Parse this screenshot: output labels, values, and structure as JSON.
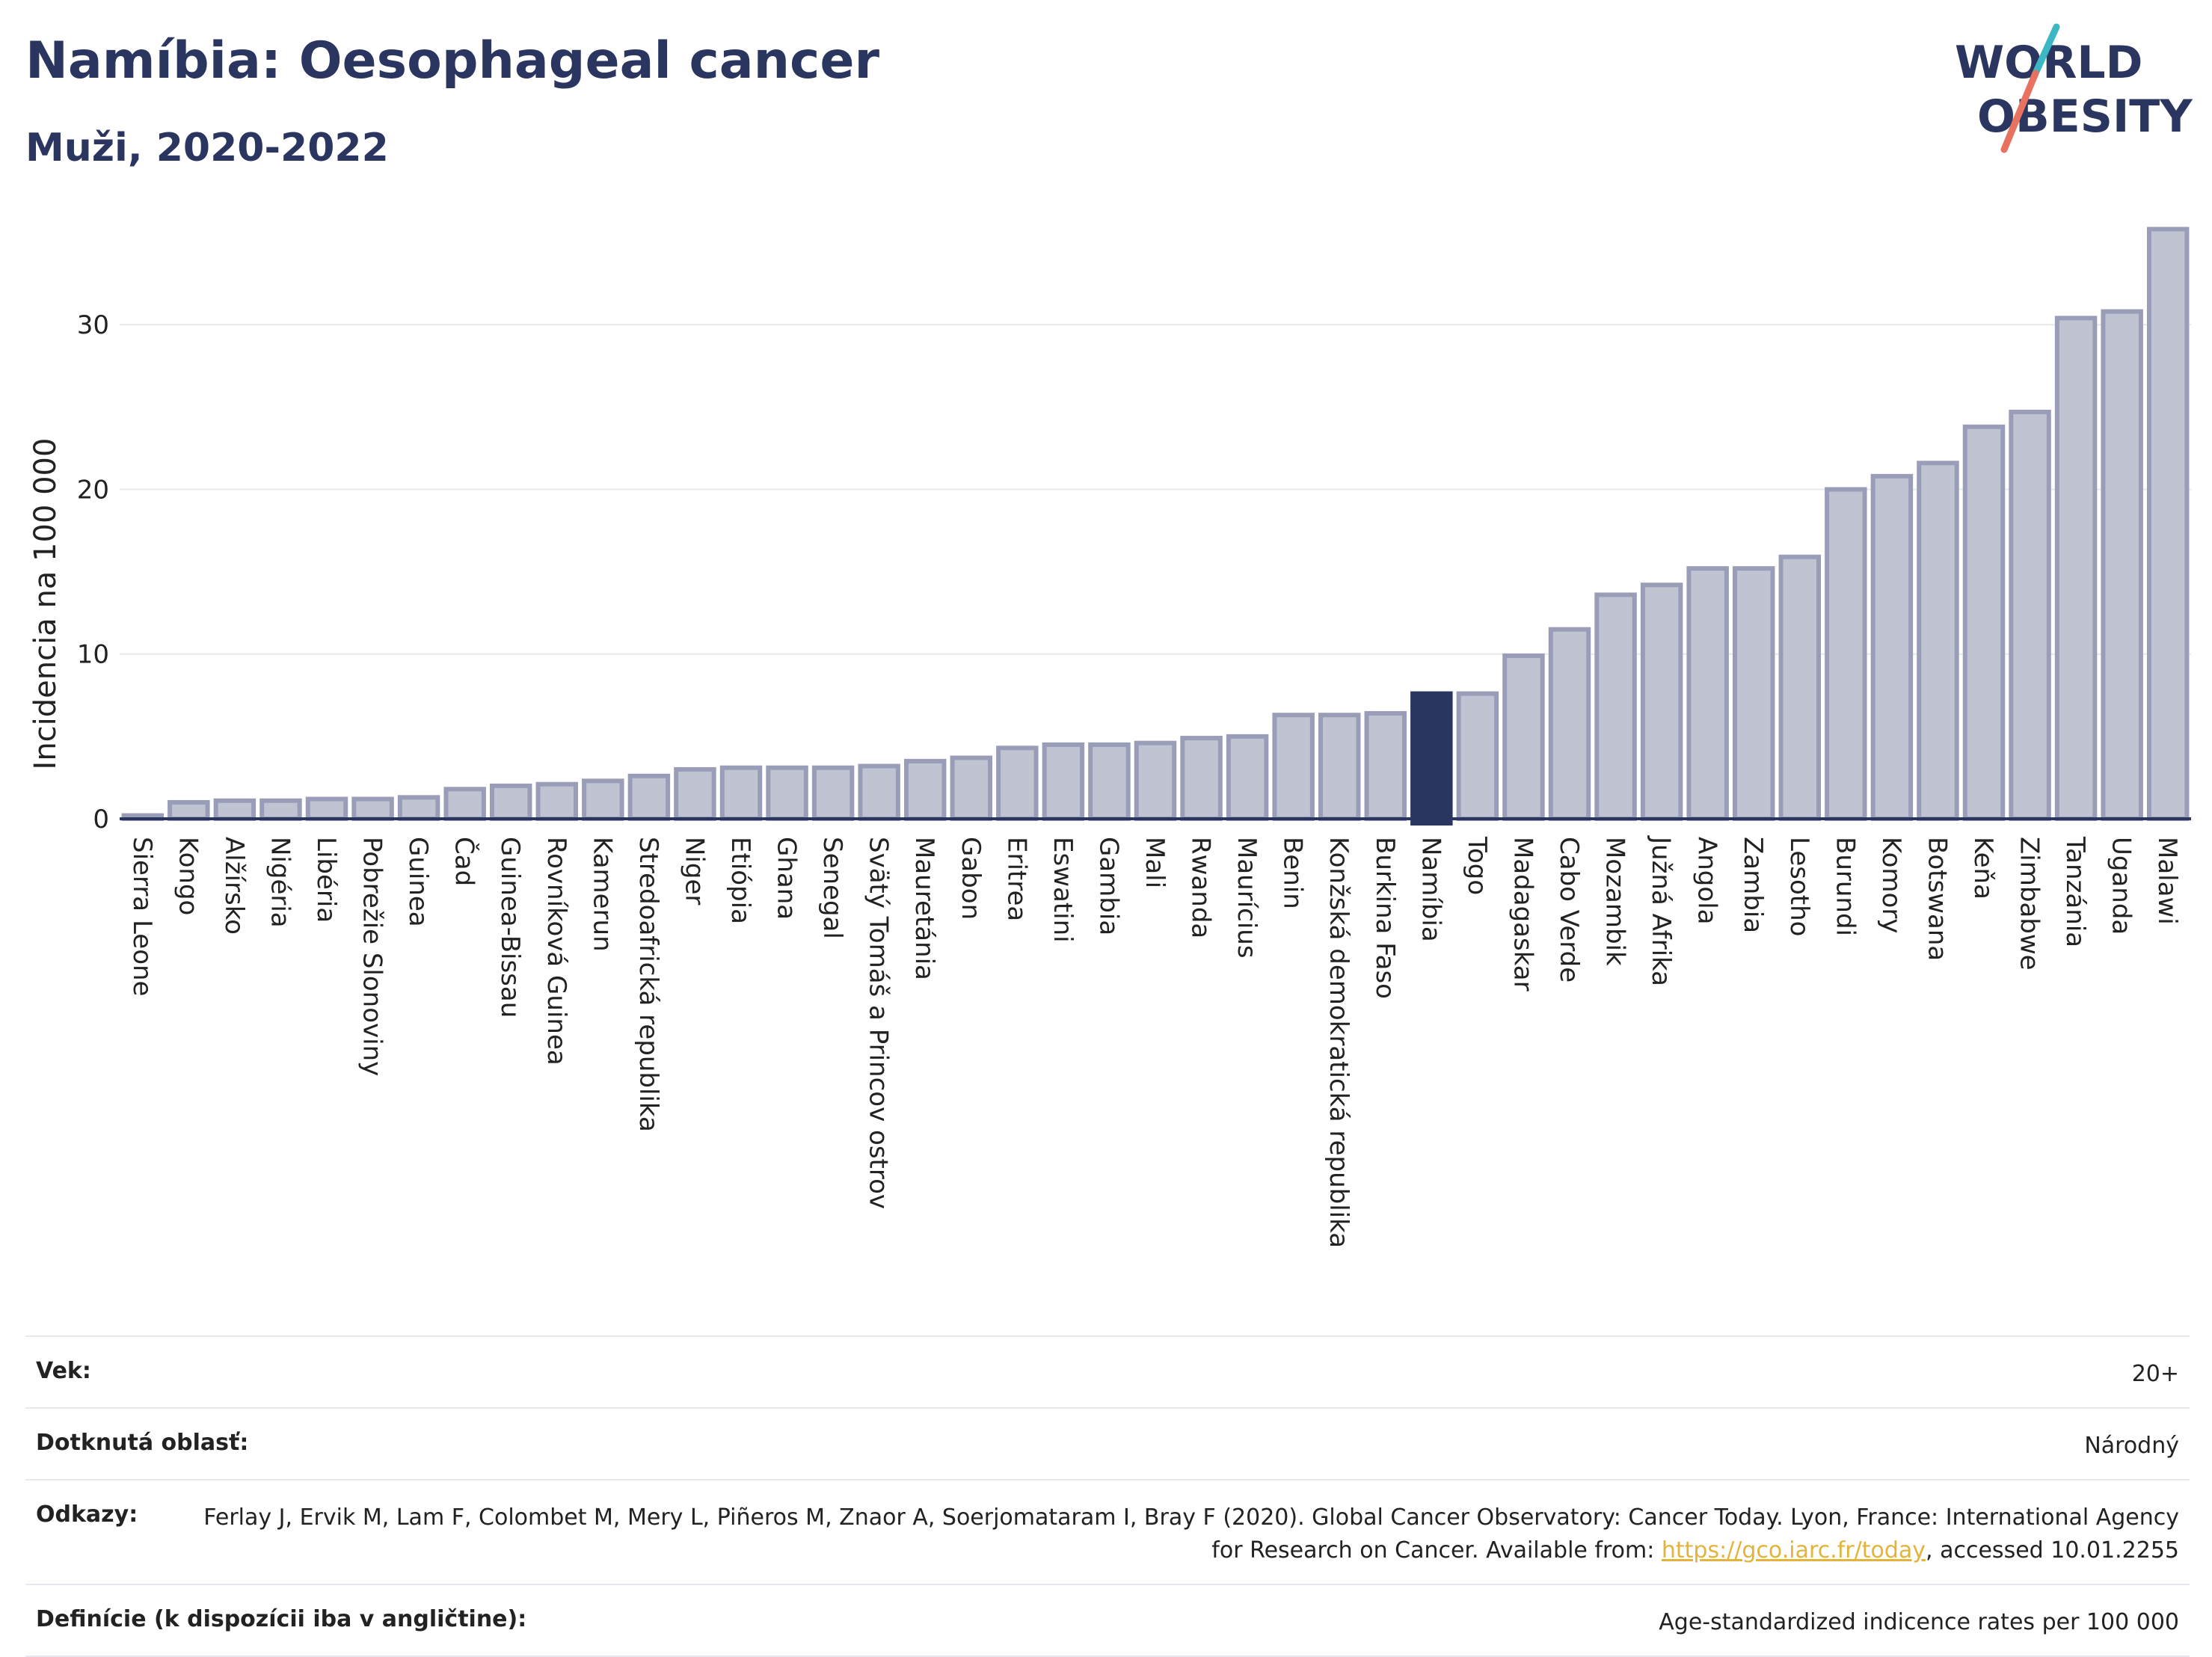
{
  "header": {
    "title": "Namíbia: Oesophageal cancer",
    "subtitle": "Muži, 2020-2022"
  },
  "logo": {
    "line1": "WORLD",
    "line2": "OBESITY",
    "slash_colors": [
      "#3bb8c3",
      "#e8715f"
    ]
  },
  "colors": {
    "bar": "#c0c3d1",
    "bar_edge": "#9a9db8",
    "highlight": "#2b3660",
    "axis": "#2b3660",
    "grid": "#e6e9ee"
  },
  "chart_data": {
    "type": "bar",
    "title": "Namíbia: Oesophageal cancer",
    "subtitle": "Muži, 2020-2022",
    "xlabel": "",
    "ylabel": "Incidencia na 100 000",
    "ylim": [
      0,
      37
    ],
    "yticks": [
      0,
      10,
      20,
      30
    ],
    "grid": true,
    "highlight": "Namíbia",
    "categories": [
      "Sierra Leone",
      "Kongo",
      "Alžírsko",
      "Nigéria",
      "Libéria",
      "Pobrežie Slonoviny",
      "Guinea",
      "Čad",
      "Guinea-Bissau",
      "Rovníková Guinea",
      "Kamerun",
      "Stredoafrická republika",
      "Niger",
      "Etiópia",
      "Ghana",
      "Senegal",
      "Svätý Tomáš a Princov ostrov",
      "Mauretánia",
      "Gabon",
      "Eritrea",
      "Eswatini",
      "Gambia",
      "Mali",
      "Rwanda",
      "Maurícius",
      "Benin",
      "Konžská demokratická republika",
      "Burkina Faso",
      "Namíbia",
      "Togo",
      "Madagaskar",
      "Cabo Verde",
      "Mozambik",
      "Južná Afrika",
      "Angola",
      "Zambia",
      "Lesotho",
      "Burundi",
      "Komory",
      "Botswana",
      "Keňa",
      "Zimbabwe",
      "Tanzánia",
      "Uganda",
      "Malawi"
    ],
    "values": [
      0.2,
      1.0,
      1.1,
      1.1,
      1.2,
      1.2,
      1.3,
      1.8,
      2.0,
      2.1,
      2.3,
      2.6,
      3.0,
      3.1,
      3.1,
      3.1,
      3.2,
      3.5,
      3.7,
      4.3,
      4.5,
      4.5,
      4.6,
      4.9,
      5.0,
      6.3,
      6.3,
      6.4,
      7.6,
      7.6,
      9.9,
      11.5,
      13.6,
      14.2,
      15.2,
      15.2,
      15.9,
      20.0,
      20.8,
      21.6,
      23.8,
      24.7,
      30.4,
      30.8,
      35.8
    ]
  },
  "meta": {
    "age_label": "Vek:",
    "age_value": "20+",
    "area_label": "Dotknutá oblasť:",
    "area_value": "Národný",
    "refs_label": "Odkazy:",
    "refs_text": "Ferlay J, Ervik M, Lam F, Colombet M, Mery L, Piñeros M, Znaor A, Soerjomataram I, Bray F (2020). Global Cancer Observatory: Cancer Today. Lyon, France: International Agency for Research on Cancer. Available from: ",
    "refs_link": "https://gco.iarc.fr/today",
    "refs_suffix": ", accessed 10.01.2255",
    "def_label": "Definície (k dispozícii iba v angličtine):",
    "def_value": "Age-standardized indicence rates per 100 000"
  }
}
